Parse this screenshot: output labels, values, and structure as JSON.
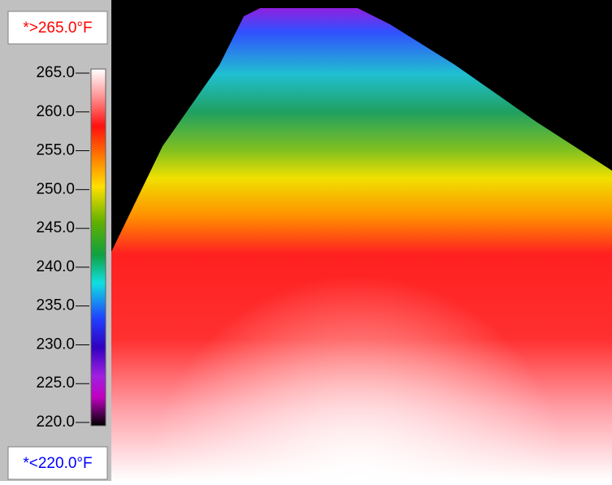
{
  "upper_label": "*>265.0°F",
  "lower_label": "*<220.0°F",
  "colorbar": {
    "range": [
      220,
      265
    ],
    "ticks": [
      {
        "value": 265,
        "label": "265.0"
      },
      {
        "value": 260,
        "label": "260.0"
      },
      {
        "value": 255,
        "label": "255.0"
      },
      {
        "value": 250,
        "label": "250.0"
      },
      {
        "value": 245,
        "label": "245.0"
      },
      {
        "value": 240,
        "label": "240.0"
      },
      {
        "value": 235,
        "label": "235.0"
      },
      {
        "value": 230,
        "label": "230.0"
      },
      {
        "value": 225,
        "label": "225.0"
      },
      {
        "value": 220,
        "label": "220.0"
      }
    ]
  }
}
